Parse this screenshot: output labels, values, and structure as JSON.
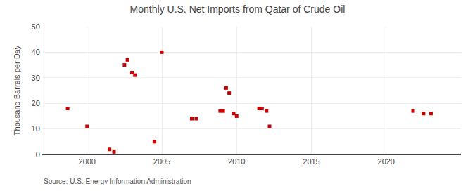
{
  "chart_data": {
    "type": "scatter",
    "title": "Monthly U.S. Net Imports from Qatar of Crude Oil",
    "ylabel": "Thousand Barrels per Day",
    "source": "Source: U.S. Energy Information Administration",
    "color": "#cc0000",
    "marker": "square",
    "x": [
      1998.7,
      2000.0,
      2001.5,
      2001.8,
      2002.5,
      2002.7,
      2003.0,
      2003.2,
      2004.5,
      2005.0,
      2007.0,
      2007.3,
      2008.9,
      2009.1,
      2009.3,
      2009.5,
      2009.8,
      2010.0,
      2011.5,
      2011.7,
      2012.0,
      2012.2,
      2021.8,
      2022.5,
      2023.0
    ],
    "values": [
      18,
      11,
      2,
      1,
      35,
      37,
      32,
      31,
      5,
      40,
      14,
      14,
      17,
      17,
      26,
      24,
      16,
      15,
      18,
      18,
      17,
      11,
      17,
      16,
      16
    ],
    "xlim": [
      1997.0,
      2025.0
    ],
    "ylim": [
      0,
      50
    ],
    "xticks": [
      2000,
      2005,
      2010,
      2015,
      2020
    ],
    "yticks": [
      0,
      10,
      20,
      30,
      40,
      50
    ],
    "grid": true
  }
}
